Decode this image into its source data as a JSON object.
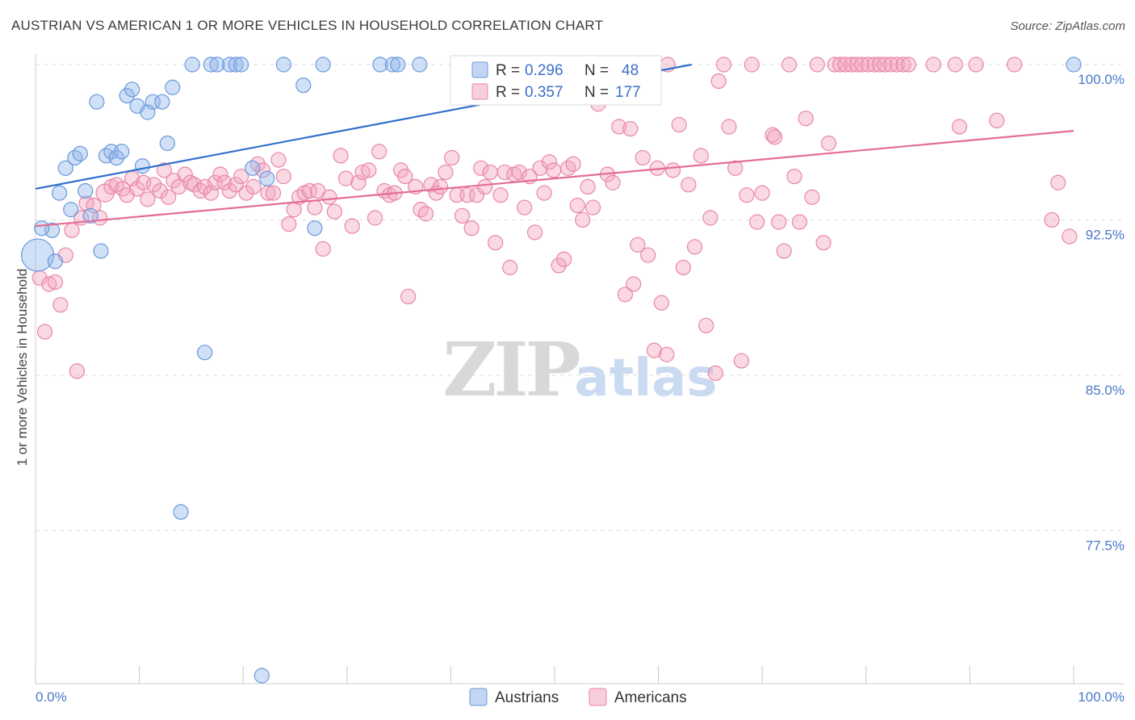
{
  "title": "AUSTRIAN VS AMERICAN 1 OR MORE VEHICLES IN HOUSEHOLD CORRELATION CHART",
  "source": "Source: ZipAtlas.com",
  "watermark": {
    "zip": "ZIP",
    "atlas": "atlas"
  },
  "chart_data": {
    "type": "scatter",
    "title": "AUSTRIAN VS AMERICAN 1 OR MORE VEHICLES IN HOUSEHOLD CORRELATION CHART",
    "xlabel": "",
    "ylabel": "1 or more Vehicles in Household",
    "xlim": [
      0,
      100
    ],
    "ylim": [
      70.5,
      100.5
    ],
    "x_tick_labels": [
      "0.0%",
      "100.0%"
    ],
    "y_ticks": [
      {
        "value": 100.0,
        "label": "100.0%"
      },
      {
        "value": 92.5,
        "label": "92.5%"
      },
      {
        "value": 85.0,
        "label": "85.0%"
      },
      {
        "value": 77.5,
        "label": "77.5%"
      }
    ],
    "grid": "horizontal dashed",
    "legend": {
      "placement": "top-center",
      "entries": [
        {
          "r_label": "R =",
          "r_value": "0.296",
          "n_label": "N =",
          "n_value": "48",
          "color": "#8fb4ea"
        },
        {
          "r_label": "R =",
          "r_value": "0.357",
          "n_label": "N =",
          "n_value": "177",
          "color": "#f4a5bd"
        }
      ]
    },
    "series": [
      {
        "name": "Austrians",
        "color": "#8fb4ea",
        "stroke": "#6a98dd",
        "trend_color": "#2f6fcf",
        "trend": [
          [
            0,
            94.0
          ],
          [
            63.2,
            100.0
          ]
        ],
        "points": [
          [
            0.2,
            90.8
          ],
          [
            1.6,
            92.0
          ],
          [
            0.6,
            92.1
          ],
          [
            1.9,
            90.5
          ],
          [
            2.3,
            93.8
          ],
          [
            2.9,
            95.0
          ],
          [
            3.4,
            93.0
          ],
          [
            3.8,
            95.5
          ],
          [
            4.3,
            95.7
          ],
          [
            4.8,
            93.9
          ],
          [
            5.3,
            92.7
          ],
          [
            5.9,
            98.2
          ],
          [
            6.3,
            91.0
          ],
          [
            6.8,
            95.6
          ],
          [
            7.3,
            95.8
          ],
          [
            7.8,
            95.5
          ],
          [
            8.3,
            95.8
          ],
          [
            8.8,
            98.5
          ],
          [
            9.3,
            98.8
          ],
          [
            9.8,
            98.0
          ],
          [
            10.3,
            95.1
          ],
          [
            10.8,
            97.7
          ],
          [
            11.3,
            98.2
          ],
          [
            12.2,
            98.2
          ],
          [
            12.7,
            96.2
          ],
          [
            13.2,
            98.9
          ],
          [
            14.0,
            78.4
          ],
          [
            15.1,
            100.0
          ],
          [
            16.3,
            86.1
          ],
          [
            16.9,
            100.0
          ],
          [
            17.5,
            100.0
          ],
          [
            18.7,
            100.0
          ],
          [
            19.3,
            100.0
          ],
          [
            19.8,
            100.0
          ],
          [
            20.9,
            95.0
          ],
          [
            21.8,
            70.5
          ],
          [
            22.3,
            94.5
          ],
          [
            23.9,
            100.0
          ],
          [
            25.8,
            99.0
          ],
          [
            26.9,
            92.1
          ],
          [
            27.7,
            100.0
          ],
          [
            33.2,
            100.0
          ],
          [
            34.4,
            100.0
          ],
          [
            34.9,
            100.0
          ],
          [
            37.0,
            100.0
          ],
          [
            41.0,
            100.0
          ],
          [
            44.2,
            100.0
          ],
          [
            100.0,
            100.0
          ]
        ]
      },
      {
        "name": "Americans",
        "color": "#f4a5bd",
        "stroke": "#e886a6",
        "trend_color": "#e36d96",
        "trend": [
          [
            0,
            92.2
          ],
          [
            100.0,
            96.8
          ]
        ],
        "points": [
          [
            0.4,
            89.7
          ],
          [
            0.9,
            87.1
          ],
          [
            1.3,
            89.4
          ],
          [
            1.9,
            89.5
          ],
          [
            2.4,
            88.4
          ],
          [
            2.9,
            90.8
          ],
          [
            3.5,
            92.0
          ],
          [
            4.0,
            85.2
          ],
          [
            4.4,
            92.6
          ],
          [
            4.9,
            93.3
          ],
          [
            5.6,
            93.2
          ],
          [
            6.2,
            92.6
          ],
          [
            6.7,
            93.8
          ],
          [
            7.3,
            94.1
          ],
          [
            7.8,
            94.2
          ],
          [
            8.4,
            94.0
          ],
          [
            8.8,
            93.7
          ],
          [
            9.3,
            94.5
          ],
          [
            9.8,
            94.0
          ],
          [
            10.4,
            94.3
          ],
          [
            10.8,
            93.5
          ],
          [
            11.4,
            94.2
          ],
          [
            12.0,
            93.9
          ],
          [
            12.4,
            94.9
          ],
          [
            12.8,
            93.6
          ],
          [
            13.3,
            94.4
          ],
          [
            13.8,
            94.1
          ],
          [
            14.4,
            94.7
          ],
          [
            14.9,
            94.3
          ],
          [
            15.3,
            94.2
          ],
          [
            15.9,
            93.9
          ],
          [
            16.3,
            94.1
          ],
          [
            16.9,
            93.8
          ],
          [
            17.3,
            94.3
          ],
          [
            17.8,
            94.7
          ],
          [
            18.2,
            94.3
          ],
          [
            18.7,
            93.9
          ],
          [
            19.3,
            94.2
          ],
          [
            19.8,
            94.6
          ],
          [
            20.3,
            93.8
          ],
          [
            21.0,
            94.1
          ],
          [
            21.4,
            95.2
          ],
          [
            21.9,
            94.9
          ],
          [
            22.4,
            93.8
          ],
          [
            22.9,
            93.8
          ],
          [
            23.4,
            95.4
          ],
          [
            23.9,
            94.6
          ],
          [
            24.4,
            92.3
          ],
          [
            24.9,
            93.0
          ],
          [
            25.4,
            93.6
          ],
          [
            25.9,
            93.8
          ],
          [
            26.4,
            93.9
          ],
          [
            26.9,
            93.1
          ],
          [
            27.2,
            93.9
          ],
          [
            27.7,
            91.1
          ],
          [
            28.3,
            93.6
          ],
          [
            28.8,
            92.9
          ],
          [
            29.4,
            95.6
          ],
          [
            29.9,
            94.5
          ],
          [
            30.5,
            92.2
          ],
          [
            31.1,
            94.3
          ],
          [
            31.5,
            94.8
          ],
          [
            32.1,
            94.9
          ],
          [
            32.7,
            92.6
          ],
          [
            33.1,
            95.8
          ],
          [
            33.6,
            93.9
          ],
          [
            34.1,
            93.7
          ],
          [
            34.6,
            93.8
          ],
          [
            35.2,
            94.9
          ],
          [
            35.6,
            94.6
          ],
          [
            35.9,
            88.8
          ],
          [
            36.6,
            94.1
          ],
          [
            37.1,
            93.0
          ],
          [
            37.6,
            92.8
          ],
          [
            38.1,
            94.2
          ],
          [
            38.6,
            93.8
          ],
          [
            39.0,
            94.1
          ],
          [
            39.5,
            94.8
          ],
          [
            40.1,
            95.5
          ],
          [
            40.6,
            93.7
          ],
          [
            41.1,
            92.7
          ],
          [
            41.6,
            93.7
          ],
          [
            42.0,
            92.1
          ],
          [
            42.5,
            93.7
          ],
          [
            42.9,
            95.0
          ],
          [
            43.3,
            94.1
          ],
          [
            43.8,
            94.8
          ],
          [
            44.3,
            91.4
          ],
          [
            44.8,
            93.7
          ],
          [
            45.2,
            94.8
          ],
          [
            45.7,
            90.2
          ],
          [
            46.1,
            94.7
          ],
          [
            46.6,
            94.8
          ],
          [
            47.1,
            93.1
          ],
          [
            47.6,
            94.6
          ],
          [
            48.1,
            91.9
          ],
          [
            48.6,
            95.0
          ],
          [
            49.0,
            93.8
          ],
          [
            49.5,
            95.3
          ],
          [
            49.9,
            94.9
          ],
          [
            50.4,
            90.3
          ],
          [
            50.9,
            90.6
          ],
          [
            51.3,
            95.0
          ],
          [
            51.8,
            95.2
          ],
          [
            52.2,
            93.2
          ],
          [
            52.7,
            92.5
          ],
          [
            53.2,
            94.1
          ],
          [
            53.7,
            93.1
          ],
          [
            54.2,
            98.1
          ],
          [
            55.1,
            94.7
          ],
          [
            55.6,
            94.3
          ],
          [
            56.2,
            97.0
          ],
          [
            56.8,
            88.9
          ],
          [
            57.3,
            96.9
          ],
          [
            57.6,
            89.4
          ],
          [
            58.0,
            91.3
          ],
          [
            58.5,
            95.5
          ],
          [
            59.0,
            90.8
          ],
          [
            59.6,
            86.2
          ],
          [
            59.9,
            95.0
          ],
          [
            60.3,
            88.5
          ],
          [
            60.8,
            86.0
          ],
          [
            61.4,
            94.9
          ],
          [
            62.0,
            97.1
          ],
          [
            62.4,
            90.2
          ],
          [
            62.9,
            94.2
          ],
          [
            63.5,
            91.2
          ],
          [
            64.1,
            95.6
          ],
          [
            64.6,
            87.4
          ],
          [
            65.0,
            92.6
          ],
          [
            65.5,
            85.1
          ],
          [
            66.3,
            100.0
          ],
          [
            66.8,
            97.0
          ],
          [
            67.4,
            95.0
          ],
          [
            68.0,
            85.7
          ],
          [
            68.5,
            93.7
          ],
          [
            69.0,
            100.0
          ],
          [
            69.5,
            92.4
          ],
          [
            70.0,
            93.8
          ],
          [
            71.0,
            96.6
          ],
          [
            71.6,
            92.4
          ],
          [
            72.1,
            91.0
          ],
          [
            72.6,
            100.0
          ],
          [
            73.1,
            94.6
          ],
          [
            73.6,
            92.4
          ],
          [
            74.2,
            97.4
          ],
          [
            74.8,
            93.6
          ],
          [
            75.3,
            100.0
          ],
          [
            75.9,
            91.4
          ],
          [
            76.4,
            96.2
          ],
          [
            77.0,
            100.0
          ],
          [
            77.5,
            100.0
          ],
          [
            78.0,
            100.0
          ],
          [
            78.6,
            100.0
          ],
          [
            79.1,
            100.0
          ],
          [
            79.6,
            100.0
          ],
          [
            80.2,
            100.0
          ],
          [
            80.8,
            100.0
          ],
          [
            81.3,
            100.0
          ],
          [
            81.8,
            100.0
          ],
          [
            82.4,
            100.0
          ],
          [
            83.0,
            100.0
          ],
          [
            83.6,
            100.0
          ],
          [
            84.1,
            100.0
          ],
          [
            86.5,
            100.0
          ],
          [
            90.6,
            100.0
          ],
          [
            94.3,
            100.0
          ],
          [
            97.9,
            92.5
          ],
          [
            98.5,
            94.3
          ],
          [
            99.6,
            91.7
          ],
          [
            88.6,
            100.0
          ],
          [
            89.0,
            97.0
          ],
          [
            92.6,
            97.3
          ],
          [
            71.2,
            96.5
          ],
          [
            59.2,
            100.0
          ],
          [
            54.0,
            100.0
          ],
          [
            60.9,
            100.0
          ],
          [
            57.9,
            100.0
          ],
          [
            65.8,
            99.2
          ]
        ]
      }
    ]
  },
  "bottom_legend": [
    {
      "label": "Austrians",
      "color": "#8fb4ea"
    },
    {
      "label": "Americans",
      "color": "#f4a5bd"
    }
  ]
}
